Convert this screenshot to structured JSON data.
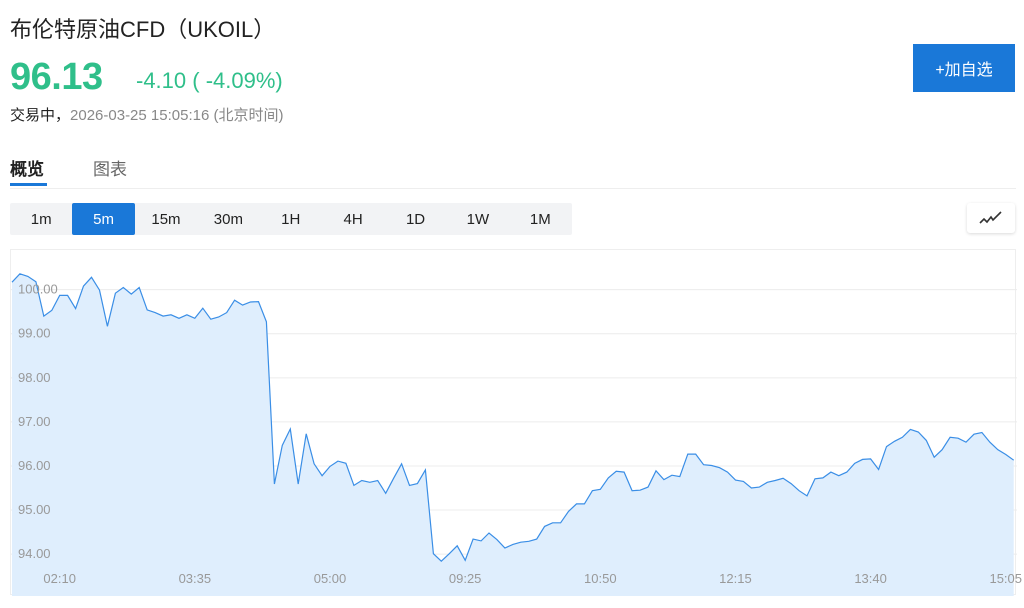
{
  "header": {
    "title": "布伦特原油CFD（UKOIL）",
    "price": "96.13",
    "change": "-4.10 ( -4.09%)",
    "status": "交易中，",
    "timestamp": "2026-03-25 15:05:16 (北京时间)",
    "add_watchlist_label": "+加自选"
  },
  "colors": {
    "up_down": "#2fbf8a",
    "accent": "#1a78d8",
    "line": "#3a8ee6",
    "fill": "#dfeefd"
  },
  "tabs": [
    {
      "label": "概览",
      "active": true
    },
    {
      "label": "图表",
      "active": false
    }
  ],
  "intervals": [
    {
      "label": "1m"
    },
    {
      "label": "5m",
      "active": true
    },
    {
      "label": "15m"
    },
    {
      "label": "30m"
    },
    {
      "label": "1H"
    },
    {
      "label": "4H"
    },
    {
      "label": "1D"
    },
    {
      "label": "1W"
    },
    {
      "label": "1M"
    }
  ],
  "chart_type_icon": "line-chart-icon",
  "chart_data": {
    "type": "area",
    "ylim": [
      93.05,
      100.9
    ],
    "yticks": [
      "94.00",
      "95.00",
      "96.00",
      "97.00",
      "98.00",
      "99.00",
      "100.00"
    ],
    "grid": true,
    "xtick_labels": [
      {
        "index": 6,
        "label": "02:10"
      },
      {
        "index": 23,
        "label": "03:35"
      },
      {
        "index": 40,
        "label": "05:00"
      },
      {
        "index": 57,
        "label": "09:25"
      },
      {
        "index": 74,
        "label": "10:50"
      },
      {
        "index": 91,
        "label": "12:15"
      },
      {
        "index": 108,
        "label": "13:40"
      },
      {
        "index": 125,
        "label": "15:05"
      }
    ],
    "values": [
      100.17,
      100.36,
      100.3,
      100.18,
      99.4,
      99.53,
      99.87,
      99.87,
      99.57,
      100.08,
      100.28,
      99.99,
      99.17,
      99.92,
      100.05,
      99.9,
      100.05,
      99.54,
      99.48,
      99.4,
      99.43,
      99.35,
      99.43,
      99.35,
      99.58,
      99.33,
      99.38,
      99.48,
      99.76,
      99.65,
      99.72,
      99.73,
      99.27,
      95.59,
      96.47,
      96.84,
      95.59,
      96.73,
      96.05,
      95.78,
      95.99,
      96.11,
      96.06,
      95.56,
      95.67,
      95.63,
      95.67,
      95.38,
      95.72,
      96.05,
      95.56,
      95.6,
      95.91,
      94.01,
      93.84,
      94.01,
      94.19,
      93.86,
      94.34,
      94.3,
      94.48,
      94.33,
      94.14,
      94.22,
      94.27,
      94.29,
      94.34,
      94.63,
      94.71,
      94.71,
      94.97,
      95.14,
      95.14,
      95.44,
      95.47,
      95.73,
      95.88,
      95.86,
      95.44,
      95.45,
      95.52,
      95.89,
      95.69,
      95.79,
      95.76,
      96.27,
      96.27,
      96.03,
      96.01,
      95.96,
      95.86,
      95.68,
      95.65,
      95.5,
      95.52,
      95.63,
      95.67,
      95.72,
      95.6,
      95.44,
      95.32,
      95.71,
      95.73,
      95.86,
      95.78,
      95.86,
      96.06,
      96.15,
      96.16,
      95.92,
      96.44,
      96.56,
      96.65,
      96.83,
      96.77,
      96.58,
      96.2,
      96.37,
      96.65,
      96.63,
      96.54,
      96.72,
      96.76,
      96.54,
      96.37,
      96.26,
      96.13
    ]
  }
}
